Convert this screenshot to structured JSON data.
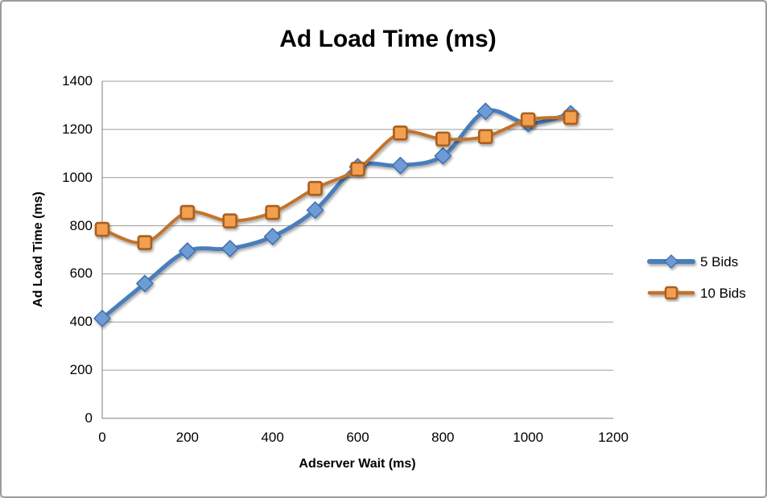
{
  "chart_data": {
    "type": "line",
    "title": "Ad Load Time (ms)",
    "xlabel": "Adserver Wait (ms)",
    "ylabel": "Ad Load Time (ms)",
    "smoothed": true,
    "grid": true,
    "legend_position": "right",
    "xlim": [
      0,
      1200
    ],
    "ylim": [
      0,
      1400
    ],
    "x_ticks": [
      0,
      200,
      400,
      600,
      800,
      1000,
      1200
    ],
    "y_ticks": [
      0,
      200,
      400,
      600,
      800,
      1000,
      1200,
      1400
    ],
    "x": [
      0,
      100,
      200,
      300,
      400,
      500,
      600,
      700,
      800,
      900,
      1000,
      1100
    ],
    "series": [
      {
        "name": "5 Bids",
        "marker": "diamond",
        "line_color": "#4a7ebb",
        "marker_fill": "#6d9bd6",
        "marker_stroke": "#3e6ca8",
        "values": [
          415,
          560,
          695,
          705,
          755,
          865,
          1045,
          1050,
          1090,
          1275,
          1225,
          1265
        ]
      },
      {
        "name": "10 Bids",
        "marker": "square",
        "line_color": "#c4732b",
        "marker_fill": "#f2a050",
        "marker_stroke": "#aa5e1b",
        "values": [
          785,
          730,
          855,
          820,
          855,
          955,
          1035,
          1185,
          1160,
          1170,
          1240,
          1250
        ]
      }
    ],
    "colors": {
      "gridline": "#9c9c9c",
      "axis_line": "#7f7f7f",
      "window_border": "#9b9b9b",
      "background": "#ffffff",
      "text": "#000000"
    }
  }
}
